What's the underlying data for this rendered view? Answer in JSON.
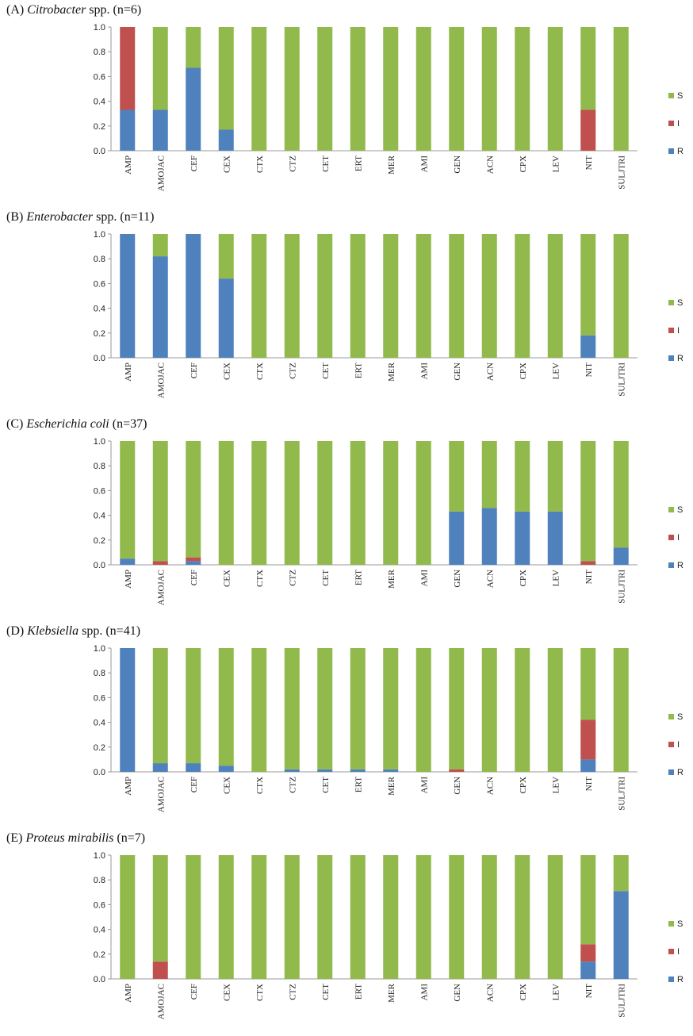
{
  "colors": {
    "S": "#92b94c",
    "I": "#c0504d",
    "R": "#4f81bd"
  },
  "chart_data": [
    {
      "type": "bar",
      "stacked": true,
      "label": "(A)",
      "organism": "Citrobacter",
      "suffix": " spp. (n=6)",
      "categories": [
        "AMP",
        "AMOJAC",
        "CEF",
        "CEX",
        "CTX",
        "CTZ",
        "CET",
        "ERT",
        "MER",
        "AMI",
        "GEN",
        "ACN",
        "CPX",
        "LEV",
        "NIT",
        "SULJTRI"
      ],
      "yticks": [
        "0.0",
        "0.2",
        "0.4",
        "0.6",
        "0.8",
        "1.0"
      ],
      "ylim": [
        0,
        1
      ],
      "legend": [
        "S",
        "I",
        "R"
      ],
      "legend_position": "right",
      "series": [
        {
          "name": "R",
          "values": [
            0.33,
            0.33,
            0.67,
            0.17,
            0,
            0,
            0,
            0,
            0,
            0,
            0,
            0,
            0,
            0,
            0,
            0
          ]
        },
        {
          "name": "I",
          "values": [
            0.67,
            0,
            0,
            0,
            0,
            0,
            0,
            0,
            0,
            0,
            0,
            0,
            0,
            0,
            0.33,
            0
          ]
        },
        {
          "name": "S",
          "values": [
            0,
            0.67,
            0.33,
            0.83,
            1,
            1,
            1,
            1,
            1,
            1,
            1,
            1,
            1,
            1,
            0.67,
            1
          ]
        }
      ]
    },
    {
      "type": "bar",
      "stacked": true,
      "label": "(B)",
      "organism": "Enterobacter",
      "suffix": " spp. (n=11)",
      "categories": [
        "AMP",
        "AMOJAC",
        "CEF",
        "CEX",
        "CTX",
        "CTZ",
        "CET",
        "ERT",
        "MER",
        "AMI",
        "GEN",
        "ACN",
        "CPX",
        "LEV",
        "NIT",
        "SULJTRI"
      ],
      "yticks": [
        "0.0",
        "0.2",
        "0.4",
        "0.6",
        "0.8",
        "1.0"
      ],
      "ylim": [
        0,
        1
      ],
      "legend": [
        "S",
        "I",
        "R"
      ],
      "legend_position": "right",
      "series": [
        {
          "name": "R",
          "values": [
            1,
            0.82,
            1,
            0.64,
            0,
            0,
            0,
            0,
            0,
            0,
            0,
            0,
            0,
            0,
            0.18,
            0
          ]
        },
        {
          "name": "I",
          "values": [
            0,
            0,
            0,
            0,
            0,
            0,
            0,
            0,
            0,
            0,
            0,
            0,
            0,
            0,
            0,
            0
          ]
        },
        {
          "name": "S",
          "values": [
            0,
            0.18,
            0,
            0.36,
            1,
            1,
            1,
            1,
            1,
            1,
            1,
            1,
            1,
            1,
            0.82,
            1
          ]
        }
      ]
    },
    {
      "type": "bar",
      "stacked": true,
      "label": "(C)",
      "organism": "Escherichia coli",
      "suffix": " (n=37)",
      "categories": [
        "AMP",
        "AMOJAC",
        "CEF",
        "CEX",
        "CTX",
        "CTZ",
        "CET",
        "ERT",
        "MER",
        "AMI",
        "GEN",
        "ACN",
        "CPX",
        "LEV",
        "NIT",
        "SULJTRI"
      ],
      "yticks": [
        "0.0",
        "0.2",
        "0.4",
        "0.6",
        "0.8",
        "1.0"
      ],
      "ylim": [
        0,
        1
      ],
      "legend": [
        "S",
        "I",
        "R"
      ],
      "legend_position": "right",
      "series": [
        {
          "name": "R",
          "values": [
            0.05,
            0,
            0.03,
            0,
            0,
            0,
            0,
            0,
            0,
            0,
            0.43,
            0.46,
            0.43,
            0.43,
            0,
            0.14
          ]
        },
        {
          "name": "I",
          "values": [
            0,
            0.03,
            0.03,
            0,
            0,
            0,
            0,
            0,
            0,
            0,
            0,
            0,
            0,
            0,
            0.03,
            0
          ]
        },
        {
          "name": "S",
          "values": [
            0.95,
            0.97,
            0.94,
            1,
            1,
            1,
            1,
            1,
            1,
            1,
            0.57,
            0.54,
            0.57,
            0.57,
            0.97,
            0.86
          ]
        }
      ]
    },
    {
      "type": "bar",
      "stacked": true,
      "label": "(D)",
      "organism": "Klebsiella",
      "suffix": " spp. (n=41)",
      "categories": [
        "AMP",
        "AMOJAC",
        "CEF",
        "CEX",
        "CTX",
        "CTZ",
        "CET",
        "ERT",
        "MER",
        "AMI",
        "GEN",
        "ACN",
        "CPX",
        "LEV",
        "NIT",
        "SULJTRI"
      ],
      "yticks": [
        "0.0",
        "0.2",
        "0.4",
        "0.6",
        "0.8",
        "1.0"
      ],
      "ylim": [
        0,
        1
      ],
      "legend": [
        "S",
        "I",
        "R"
      ],
      "legend_position": "right",
      "series": [
        {
          "name": "R",
          "values": [
            1,
            0.07,
            0.07,
            0.05,
            0,
            0.02,
            0.02,
            0.02,
            0.02,
            0,
            0,
            0,
            0,
            0,
            0.1,
            0
          ]
        },
        {
          "name": "I",
          "values": [
            0,
            0,
            0,
            0,
            0,
            0,
            0,
            0,
            0,
            0,
            0.02,
            0,
            0,
            0,
            0.32,
            0
          ]
        },
        {
          "name": "S",
          "values": [
            0,
            0.93,
            0.93,
            0.95,
            1,
            0.98,
            0.98,
            0.98,
            0.98,
            1,
            0.98,
            1,
            1,
            1,
            0.58,
            1
          ]
        }
      ]
    },
    {
      "type": "bar",
      "stacked": true,
      "label": "(E)",
      "organism": "Proteus mirabilis",
      "suffix": " (n=7)",
      "categories": [
        "AMP",
        "AMOJAC",
        "CEF",
        "CEX",
        "CTX",
        "CTZ",
        "CET",
        "ERT",
        "MER",
        "AMI",
        "GEN",
        "ACN",
        "CPX",
        "LEV",
        "NIT",
        "SULJTRI"
      ],
      "yticks": [
        "0.0",
        "0.2",
        "0.4",
        "0.6",
        "0.8",
        "1.0"
      ],
      "ylim": [
        0,
        1
      ],
      "legend": [
        "S",
        "I",
        "R"
      ],
      "legend_position": "right",
      "series": [
        {
          "name": "R",
          "values": [
            0,
            0,
            0,
            0,
            0,
            0,
            0,
            0,
            0,
            0,
            0,
            0,
            0,
            0,
            0.14,
            0.71
          ]
        },
        {
          "name": "I",
          "values": [
            0,
            0.14,
            0,
            0,
            0,
            0,
            0,
            0,
            0,
            0,
            0,
            0,
            0,
            0,
            0.14,
            0
          ]
        },
        {
          "name": "S",
          "values": [
            1,
            0.86,
            1,
            1,
            1,
            1,
            1,
            1,
            1,
            1,
            1,
            1,
            1,
            1,
            0.72,
            0.29
          ]
        }
      ]
    }
  ]
}
